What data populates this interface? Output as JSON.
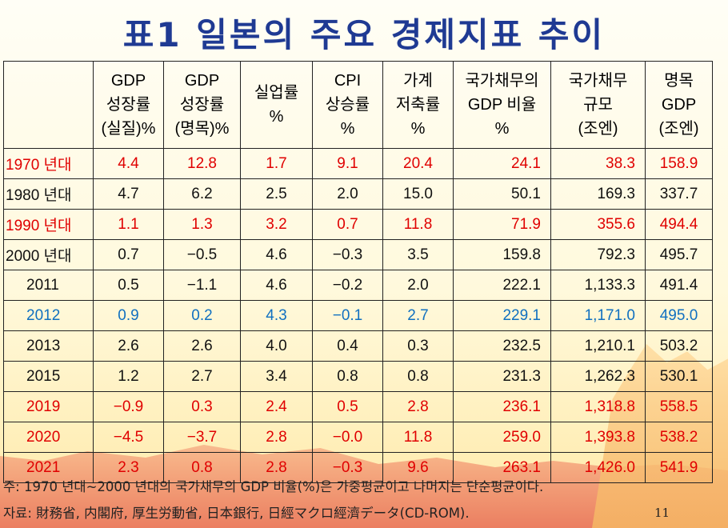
{
  "title": "표1 일본의 주요 경제지표 추이",
  "columns": [
    [
      "GDP",
      "성장률",
      "(실질)%"
    ],
    [
      "GDP",
      "성장률",
      "(명목)%"
    ],
    [
      "실업률",
      "%"
    ],
    [
      "CPI",
      "상승률",
      "%"
    ],
    [
      "가계",
      "저축률",
      "%"
    ],
    [
      "국가채무의",
      "GDP 비율",
      "%"
    ],
    [
      "국가채무",
      "규모",
      "(조엔)"
    ],
    [
      "명목",
      "GDP",
      "(조엔)"
    ]
  ],
  "rows": [
    {
      "label": "1970 년대",
      "style": "red",
      "values": [
        "4.4",
        "12.8",
        "1.7",
        "9.1",
        "20.4",
        "24.1",
        "38.3",
        "158.9"
      ]
    },
    {
      "label": "1980 년대",
      "style": "black",
      "values": [
        "4.7",
        "6.2",
        "2.5",
        "2.0",
        "15.0",
        "50.1",
        "169.3",
        "337.7"
      ]
    },
    {
      "label": "1990 년대",
      "style": "red",
      "values": [
        "1.1",
        "1.3",
        "3.2",
        "0.7",
        "11.8",
        "71.9",
        "355.6",
        "494.4"
      ]
    },
    {
      "label": "2000 년대",
      "style": "black",
      "values": [
        "0.7",
        "−0.5",
        "4.6",
        "−0.3",
        "3.5",
        "159.8",
        "792.3",
        "495.7"
      ]
    },
    {
      "label": "2011",
      "style": "black",
      "values": [
        "0.5",
        "−1.1",
        "4.6",
        "−0.2",
        "2.0",
        "222.1",
        "1,133.3",
        "491.4"
      ]
    },
    {
      "label": "2012",
      "style": "blue",
      "values": [
        "0.9",
        "0.2",
        "4.3",
        "−0.1",
        "2.7",
        "229.1",
        "1,171.0",
        "495.0"
      ]
    },
    {
      "label": "2013",
      "style": "black",
      "values": [
        "2.6",
        "2.6",
        "4.0",
        "0.4",
        "0.3",
        "232.5",
        "1,210.1",
        "503.2"
      ]
    },
    {
      "label": "2015",
      "style": "black",
      "values": [
        "1.2",
        "2.7",
        "3.4",
        "0.8",
        "0.8",
        "231.3",
        "1,262.3",
        "530.1"
      ]
    },
    {
      "label": "2019",
      "style": "redbold",
      "values": [
        "−0.9",
        "0.3",
        "2.4",
        "0.5",
        "2.8",
        "236.1",
        "1,318.8",
        "558.5"
      ]
    },
    {
      "label": "2020",
      "style": "redbold",
      "values": [
        "−4.5",
        "−3.7",
        "2.8",
        "−0.0",
        "11.8",
        "259.0",
        "1,393.8",
        "538.2"
      ]
    },
    {
      "label": "2021",
      "style": "redbold",
      "values": [
        "2.3",
        "0.8",
        "2.8",
        "−0.3",
        "9.6",
        "263.1",
        "1,426.0",
        "541.9"
      ]
    }
  ],
  "note": "주: 1970 년대~2000 년대의 국가채무의 GDP 비율(%)은 가중평균이고 나머지는 단순평균이다.",
  "source": "자료: 財務省, 内閣府, 厚生労動省, 日本銀行, 日經マクロ經濟データ(CD-ROM).",
  "page_number": "11",
  "colors": {
    "title": "#1f3a93",
    "red": "#e00000",
    "blue": "#1070c0",
    "black": "#111111"
  }
}
